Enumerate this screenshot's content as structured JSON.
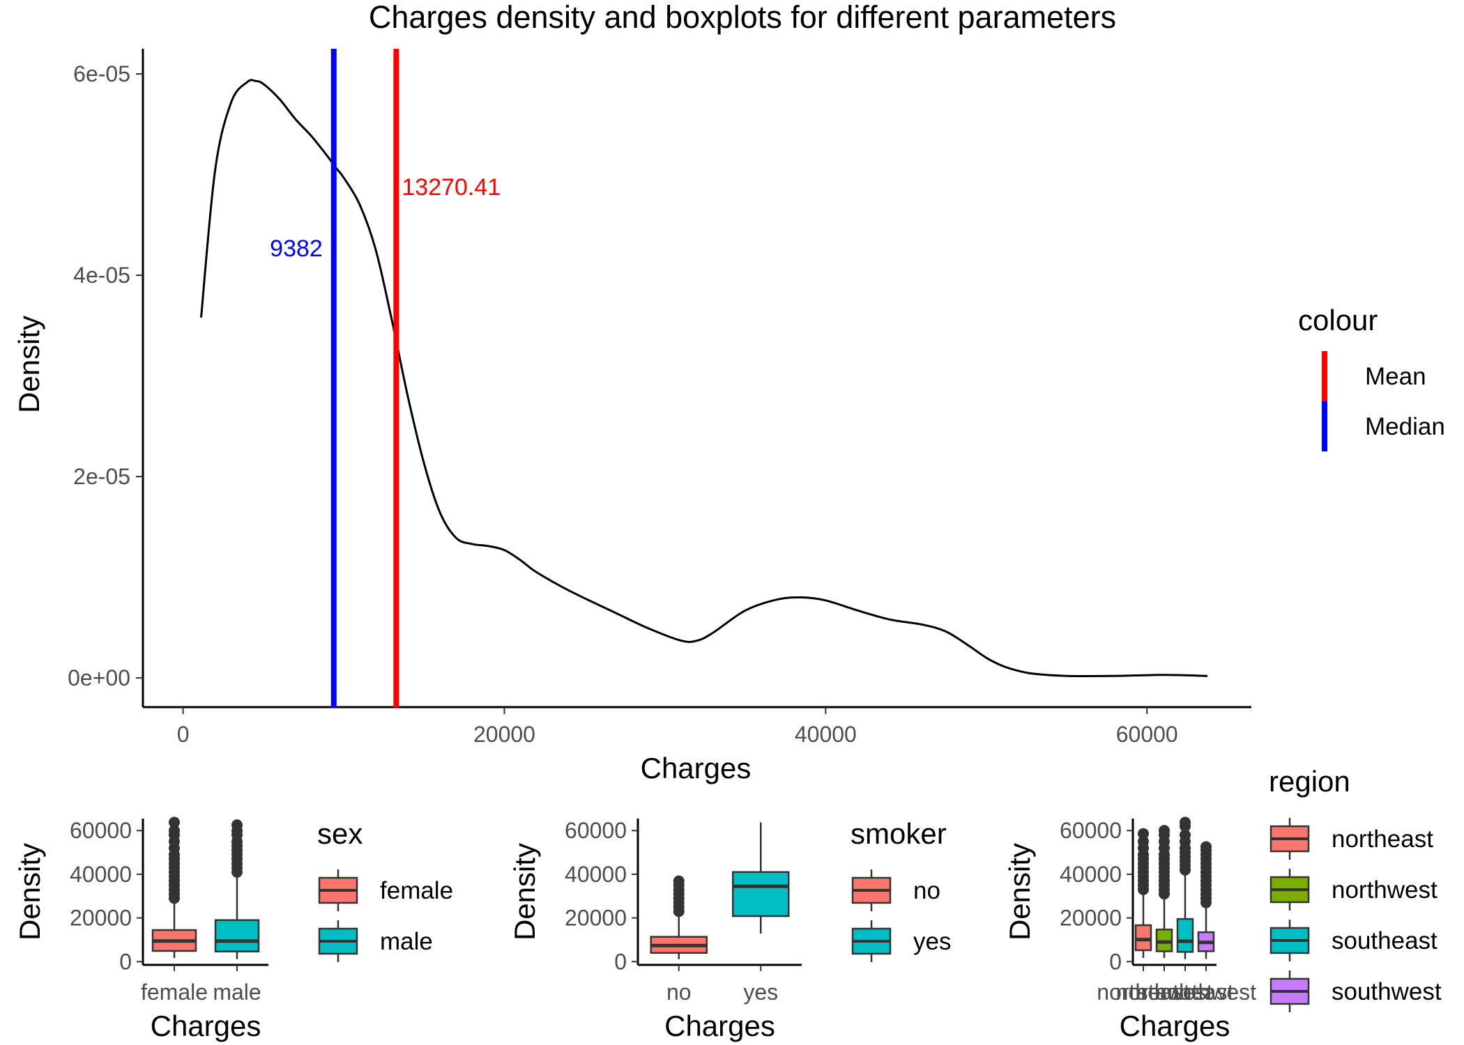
{
  "chart_data": [
    {
      "type": "line",
      "title": "Charges density and boxplots for different parameters",
      "xlabel": "Charges",
      "ylabel": "Density",
      "xlim": [
        -2500,
        66500
      ],
      "ylim": [
        -2.9e-06,
        6.25e-05
      ],
      "x_ticks": [
        {
          "value": 0,
          "label": "0"
        },
        {
          "value": 20000,
          "label": "20000"
        },
        {
          "value": 40000,
          "label": "40000"
        },
        {
          "value": 60000,
          "label": "60000"
        }
      ],
      "y_ticks": [
        {
          "value": 0,
          "label": "0e+00"
        },
        {
          "value": 2e-05,
          "label": "2e-05"
        },
        {
          "value": 4e-05,
          "label": "4e-05"
        },
        {
          "value": 6e-05,
          "label": "6e-05"
        }
      ],
      "grid": false,
      "series": [
        {
          "color": "#000000",
          "x": [
            1122,
            2000,
            3000,
            4000,
            4500,
            5000,
            6000,
            7000,
            8000,
            9000,
            9500,
            10000,
            11000,
            12000,
            13000,
            14000,
            15000,
            16000,
            17000,
            18000,
            19000,
            20000,
            21000,
            22000,
            24000,
            27000,
            29000,
            31000,
            32000,
            33000,
            35000,
            37000,
            38500,
            40000,
            42000,
            44000,
            46000,
            47500,
            49000,
            50000,
            51000,
            52000,
            53000,
            55000,
            58000,
            61000,
            63770
          ],
          "y": [
            3.58e-05,
            5.05e-05,
            5.72e-05,
            5.92e-05,
            5.93e-05,
            5.9e-05,
            5.75e-05,
            5.55e-05,
            5.38e-05,
            5.18e-05,
            5.07e-05,
            4.97e-05,
            4.7e-05,
            4.25e-05,
            3.55e-05,
            2.79e-05,
            2.13e-05,
            1.64e-05,
            1.39e-05,
            1.33e-05,
            1.31e-05,
            1.27e-05,
            1.17e-05,
            1.05e-05,
            8.7e-06,
            6.4e-06,
            4.9e-06,
            3.7e-06,
            3.7e-06,
            4.5e-06,
            6.7e-06,
            7.8e-06,
            8e-06,
            7.7e-06,
            6.7e-06,
            5.8e-06,
            5.3e-06,
            4.6e-06,
            3.1e-06,
            2e-06,
            1.2e-06,
            7e-07,
            4e-07,
            2e-07,
            2e-07,
            3e-07,
            2e-07
          ]
        }
      ],
      "vlines": [
        {
          "x": 13270.41,
          "color": "#ff0000",
          "label": "13270.41",
          "label_y": 4.88e-05
        },
        {
          "x": 9382,
          "color": "#0000ff",
          "label": "9382",
          "label_y": 4.27e-05
        }
      ],
      "legend": {
        "title": "colour",
        "position": "right",
        "entries": [
          {
            "label": "Mean",
            "color": "#ff0000"
          },
          {
            "label": "Median",
            "color": "#0000ff"
          }
        ]
      }
    },
    {
      "type": "box",
      "xlabel": "Charges",
      "ylabel": "Density",
      "ylim": [
        -1500,
        65500
      ],
      "y_ticks": [
        {
          "value": 0,
          "label": "0"
        },
        {
          "value": 20000,
          "label": "20000"
        },
        {
          "value": 40000,
          "label": "40000"
        },
        {
          "value": 60000,
          "label": "60000"
        }
      ],
      "categories": [
        "female",
        "male"
      ],
      "colors": [
        "#f8766d",
        "#00bfc4"
      ],
      "boxes": [
        {
          "min": 1607,
          "q1": 4885,
          "median": 9413,
          "q3": 14454,
          "max": 28950,
          "outliers": [
            29000,
            31000,
            33000,
            35000,
            37000,
            39000,
            41000,
            43000,
            45000,
            47000,
            49000,
            52000,
            55000,
            58000,
            60000,
            63770
          ]
        },
        {
          "min": 1122,
          "q1": 4619,
          "median": 9370,
          "q3": 19007,
          "max": 40000,
          "outliers": [
            41000,
            43000,
            45000,
            47000,
            49000,
            51000,
            53000,
            55000,
            58000,
            60000,
            62592
          ]
        }
      ],
      "legend": {
        "title": "sex",
        "position": "right",
        "entries": [
          "female",
          "male"
        ]
      }
    },
    {
      "type": "box",
      "xlabel": "Charges",
      "ylabel": "Density",
      "ylim": [
        -1500,
        65500
      ],
      "y_ticks": [
        {
          "value": 0,
          "label": "0"
        },
        {
          "value": 20000,
          "label": "20000"
        },
        {
          "value": 40000,
          "label": "40000"
        },
        {
          "value": 60000,
          "label": "60000"
        }
      ],
      "categories": [
        "no",
        "yes"
      ],
      "colors": [
        "#f8766d",
        "#00bfc4"
      ],
      "boxes": [
        {
          "min": 1122,
          "q1": 3986,
          "median": 7345,
          "q3": 11363,
          "max": 22000,
          "outliers": [
            23000,
            25000,
            27000,
            29000,
            31000,
            33000,
            35000,
            36910
          ]
        },
        {
          "min": 12829,
          "q1": 20826,
          "median": 34456,
          "q3": 41019,
          "max": 63770,
          "outliers": []
        }
      ],
      "legend": {
        "title": "smoker",
        "position": "right",
        "entries": [
          "no",
          "yes"
        ]
      }
    },
    {
      "type": "box",
      "xlabel": "Charges",
      "ylabel": "Density",
      "ylim": [
        -1500,
        65500
      ],
      "y_ticks": [
        {
          "value": 0,
          "label": "0"
        },
        {
          "value": 20000,
          "label": "20000"
        },
        {
          "value": 40000,
          "label": "40000"
        },
        {
          "value": 60000,
          "label": "60000"
        }
      ],
      "categories": [
        "northeast",
        "northwest",
        "southeast",
        "southwest"
      ],
      "colors": [
        "#f8766d",
        "#7cae00",
        "#00bfc4",
        "#c77cff"
      ],
      "boxes": [
        {
          "min": 1695,
          "q1": 5194,
          "median": 10058,
          "q3": 16687,
          "max": 32000,
          "outliers": [
            33000,
            35000,
            37000,
            39000,
            41000,
            43000,
            45000,
            47000,
            49000,
            52000,
            55000,
            58571
          ]
        },
        {
          "min": 1621,
          "q1": 4720,
          "median": 8966,
          "q3": 14712,
          "max": 30000,
          "outliers": [
            31000,
            33000,
            35000,
            37000,
            39000,
            41000,
            43000,
            45000,
            47000,
            49000,
            52000,
            55000,
            58000,
            60021
          ]
        },
        {
          "min": 1122,
          "q1": 4441,
          "median": 9294,
          "q3": 19526,
          "max": 41000,
          "outliers": [
            42000,
            44000,
            46000,
            48000,
            50000,
            52000,
            55000,
            58000,
            62000,
            63770
          ]
        },
        {
          "min": 1242,
          "q1": 4751,
          "median": 8799,
          "q3": 13463,
          "max": 25000,
          "outliers": [
            27000,
            29000,
            31000,
            33000,
            35000,
            37000,
            39000,
            41000,
            43000,
            45000,
            47000,
            49000,
            51000,
            52591
          ]
        }
      ],
      "legend": {
        "title": "region",
        "position": "right",
        "entries": [
          "northeast",
          "northwest",
          "southeast",
          "southwest"
        ]
      }
    }
  ]
}
